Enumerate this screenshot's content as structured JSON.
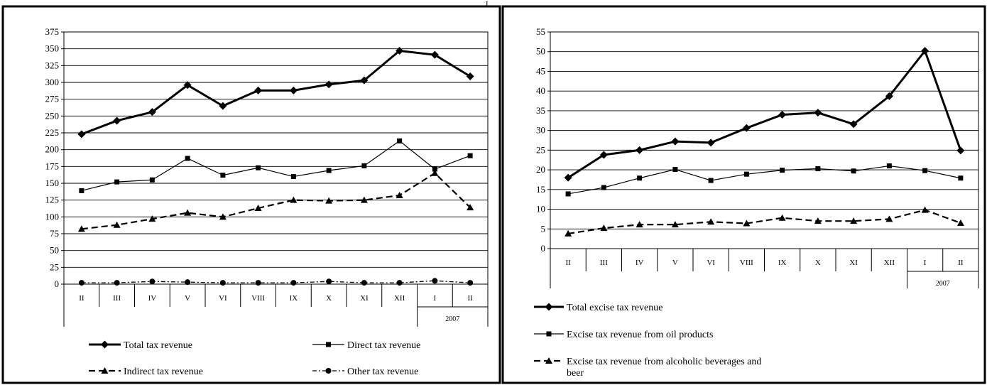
{
  "top_mark": "J",
  "chart_data": [
    {
      "type": "line",
      "title": "",
      "xlabel": "",
      "ylabel": "",
      "categories": [
        "II",
        "III",
        "IV",
        "V",
        "VI",
        "VIII",
        "IX",
        "X",
        "XI",
        "XII",
        "I",
        "II"
      ],
      "year_label": "2007",
      "year_label_starts_at_index": 10,
      "ylim": [
        0,
        375
      ],
      "yticks": [
        0,
        25,
        50,
        75,
        100,
        125,
        150,
        175,
        200,
        225,
        250,
        275,
        300,
        325,
        350,
        375
      ],
      "grid": true,
      "legend_position": "bottom",
      "series": [
        {
          "name": "Total tax revenue",
          "values": [
            223,
            243,
            256,
            296,
            265,
            288,
            288,
            297,
            303,
            347,
            341,
            309
          ],
          "color": "#000000",
          "line_style": "solid-thick",
          "marker": "diamond"
        },
        {
          "name": "Direct tax revenue",
          "values": [
            139,
            152,
            155,
            187,
            162,
            173,
            160,
            169,
            176,
            213,
            171,
            191
          ],
          "color": "#000000",
          "line_style": "solid-thin",
          "marker": "square"
        },
        {
          "name": "Indirect tax revenue",
          "values": [
            82,
            88,
            97,
            106,
            100,
            113,
            125,
            124,
            125,
            132,
            165,
            114
          ],
          "color": "#000000",
          "line_style": "dashed",
          "marker": "triangle"
        },
        {
          "name": "Other tax revenue",
          "values": [
            2,
            2,
            4,
            3,
            2,
            2,
            2,
            4,
            2,
            2,
            5,
            2
          ],
          "color": "#000000",
          "line_style": "dash-dot",
          "marker": "circle"
        }
      ]
    },
    {
      "type": "line",
      "title": "",
      "xlabel": "",
      "ylabel": "",
      "categories": [
        "II",
        "III",
        "IV",
        "V",
        "VI",
        "VIII",
        "IX",
        "X",
        "XI",
        "XII",
        "I",
        "II"
      ],
      "year_label": "2007",
      "year_label_starts_at_index": 10,
      "ylim": [
        0,
        55
      ],
      "yticks": [
        0,
        5,
        10,
        15,
        20,
        25,
        30,
        35,
        40,
        45,
        50,
        55
      ],
      "grid": true,
      "legend_position": "bottom",
      "series": [
        {
          "name": "Total excise tax revenue",
          "values": [
            18,
            23.8,
            25,
            27.2,
            26.9,
            30.6,
            34,
            34.5,
            31.6,
            38.7,
            50.2,
            24.9
          ],
          "color": "#000000",
          "line_style": "solid-thick",
          "marker": "diamond"
        },
        {
          "name": "Excise tax revenue from oil products",
          "values": [
            13.9,
            15.5,
            17.9,
            20.1,
            17.3,
            18.9,
            19.9,
            20.3,
            19.7,
            21,
            19.8,
            17.9
          ],
          "color": "#000000",
          "line_style": "solid-thin",
          "marker": "square"
        },
        {
          "name": "Excise tax revenue from alcoholic beverages and beer",
          "values": [
            3.8,
            5.2,
            6.1,
            6.1,
            6.8,
            6.4,
            7.8,
            7,
            7,
            7.5,
            9.8,
            6.5
          ],
          "color": "#000000",
          "line_style": "dashed",
          "marker": "triangle"
        }
      ]
    }
  ]
}
